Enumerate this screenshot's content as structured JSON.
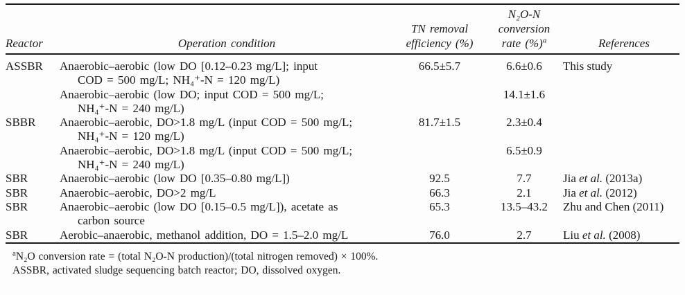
{
  "colors": {
    "background": "#fdfdfd",
    "text": "#1b1b1b",
    "rule": "#1a1a1a"
  },
  "table": {
    "headers": {
      "reactor": "Reactor",
      "condition": "Operation condition",
      "tn_line1": "TN removal",
      "tn_line2": "efficiency (%)",
      "n2o_line1": "N₂O-N",
      "n2o_line2": "conversion",
      "n2o_line3": "rate (%)",
      "n2o_sup": "a",
      "references": "References"
    },
    "rows": [
      {
        "reactor": "ASSBR",
        "lines": [
          "Anaerobic–aerobic (low DO [0.12–0.23 mg/L]; input",
          "COD = 500 mg/L; NH₄⁺-N = 120 mg/L)"
        ],
        "tn": "66.5±5.7",
        "n2o": "6.6±0.6",
        "ref_pre": "This study"
      },
      {
        "reactor": "",
        "lines": [
          "Anaerobic–aerobic (low DO; input COD = 500 mg/L;",
          "NH₄⁺-N = 240 mg/L)"
        ],
        "n2o": "14.1±1.6"
      },
      {
        "reactor": "SBBR",
        "lines": [
          "Anaerobic–aerobic, DO>1.8 mg/L (input COD = 500 mg/L;",
          "NH₄⁺-N = 120 mg/L)"
        ],
        "tn": "81.7±1.5",
        "n2o": "2.3±0.4"
      },
      {
        "reactor": "",
        "lines": [
          "Anaerobic–aerobic, DO>1.8 mg/L (input COD = 500 mg/L;",
          "NH₄⁺-N = 240 mg/L)"
        ],
        "n2o": "6.5±0.9"
      },
      {
        "reactor": "SBR",
        "lines": [
          "Anaerobic–aerobic (low DO [0.35–0.80 mg/L])"
        ],
        "tn": "92.5",
        "n2o": "7.7",
        "ref_pre": "Jia ",
        "ref_it": "et al.",
        "ref_post": " (2013a)"
      },
      {
        "reactor": "SBR",
        "lines": [
          "Anaerobic–aerobic, DO>2 mg/L"
        ],
        "tn": "66.3",
        "n2o": "2.1",
        "ref_pre": "Jia ",
        "ref_it": "et al.",
        "ref_post": " (2012)"
      },
      {
        "reactor": "SBR",
        "lines": [
          "Anaerobic–aerobic (low DO [0.15–0.5 mg/L]), acetate as",
          "carbon source"
        ],
        "tn": "65.3",
        "n2o": "13.5–43.2",
        "ref_pre": "Zhu and Chen (2011)"
      },
      {
        "reactor": "SBR",
        "lines": [
          "Aerobic–anaerobic, methanol addition, DO = 1.5–2.0 mg/L"
        ],
        "tn": "76.0",
        "n2o": "2.7",
        "ref_pre": "Liu ",
        "ref_it": "et al.",
        "ref_post": " (2008)"
      }
    ],
    "footnotes": [
      {
        "sup": "a",
        "text": "N₂O conversion rate = (total N₂O-N production)/(total nitrogen removed) × 100%."
      },
      {
        "text": "ASSBR, activated sludge sequencing batch reactor; DO, dissolved oxygen."
      }
    ]
  }
}
